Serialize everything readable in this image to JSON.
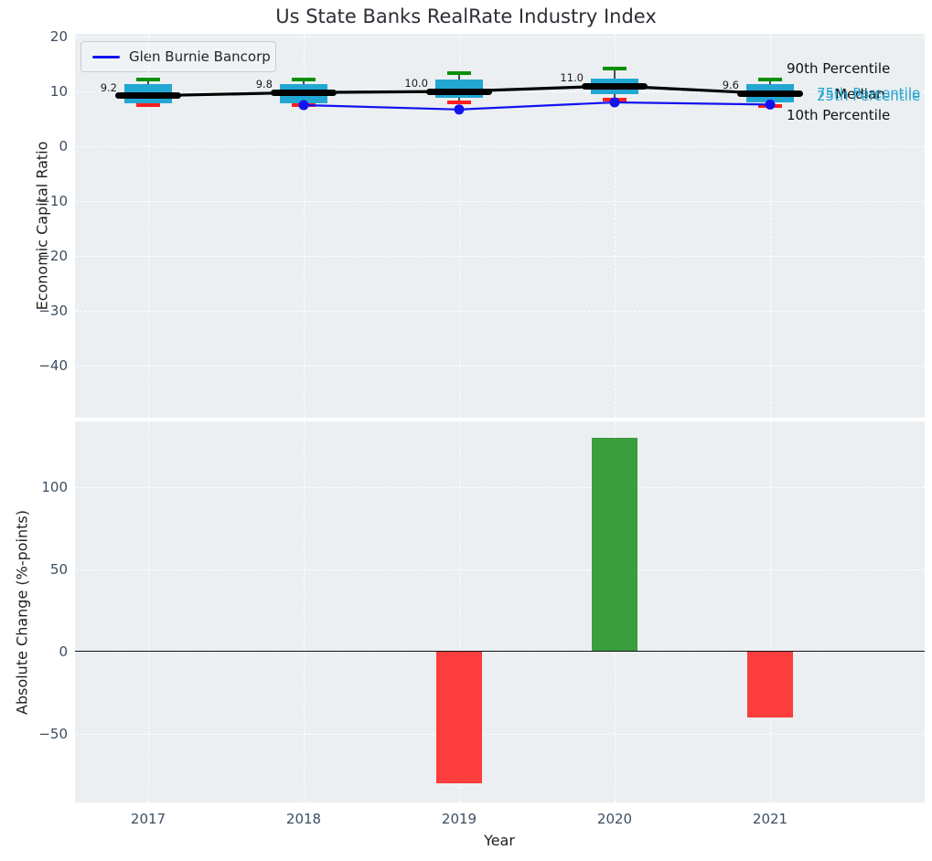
{
  "title": "Us State Banks RealRate Industry Index",
  "colors": {
    "axes_bg": "#ebeff1",
    "grid": "#ffffff",
    "box_fill": "#22a7d3",
    "whisker": "#4d4d4d",
    "median_line": "#000000",
    "cap_top": "#078f07",
    "cap_bottom": "#ff1f1f",
    "company_line": "#1212f0",
    "bar_positive": "#3a9d3e",
    "bar_negative": "#fb3d3d",
    "tick_label": "#3d4e61",
    "annotation_cyan": "#29a6d2",
    "annotation_dark": "#101010"
  },
  "chart_data": [
    {
      "type": "boxplot+line",
      "title": "Us State Banks RealRate Industry Index",
      "ylabel": "Economic Capital Ratio",
      "xlabel": "Year",
      "categories": [
        "2017",
        "2018",
        "2019",
        "2020",
        "2021"
      ],
      "yticks": [
        20,
        10,
        0,
        -10,
        -20,
        -30,
        -40
      ],
      "ylim": [
        -49.5,
        20.7
      ],
      "grid": true,
      "legend": {
        "position": "upper left",
        "entries": [
          {
            "label": "Glen Burnie Bancorp",
            "color": "#1212f0"
          }
        ]
      },
      "boxes": [
        {
          "year": "2017",
          "median": 9.2,
          "median_label": "9.2",
          "q1": 7.8,
          "q3": 11.3,
          "p10": 7.5,
          "p90": 12.2
        },
        {
          "year": "2018",
          "median": 9.8,
          "median_label": "9.8",
          "q1": 7.8,
          "q3": 11.3,
          "p10": 7.5,
          "p90": 12.2
        },
        {
          "year": "2019",
          "median": 10.0,
          "median_label": "10.0",
          "q1": 8.8,
          "q3": 12.2,
          "p10": 8.0,
          "p90": 13.3
        },
        {
          "year": "2020",
          "median": 11.0,
          "median_label": "11.0",
          "q1": 9.5,
          "q3": 12.3,
          "p10": 8.5,
          "p90": 14.2
        },
        {
          "year": "2021",
          "median": 9.6,
          "median_label": "9.6",
          "q1": 8.0,
          "q3": 11.3,
          "p10": 7.3,
          "p90": 12.2
        }
      ],
      "series": [
        {
          "name": "Glen Burnie Bancorp",
          "x": [
            "2018",
            "2019",
            "2020",
            "2021"
          ],
          "values": [
            7.5,
            6.7,
            8.0,
            7.6
          ]
        }
      ],
      "annotations": [
        {
          "text": "90th Percentile",
          "style": "dark"
        },
        {
          "text": "75th Percentile",
          "style": "cyan"
        },
        {
          "text": "Median",
          "style": "dark"
        },
        {
          "text": "25th Percentile",
          "style": "cyan"
        },
        {
          "text": "10th Percentile",
          "style": "dark"
        }
      ]
    },
    {
      "type": "bar",
      "ylabel": "Absolute Change (%-points)",
      "xlabel": "Year",
      "categories": [
        "2017",
        "2018",
        "2019",
        "2020",
        "2021"
      ],
      "values": [
        null,
        null,
        -80,
        130,
        -40
      ],
      "yticks": [
        100,
        50,
        0,
        -50
      ],
      "ylim": [
        -92,
        140
      ],
      "grid": true
    }
  ]
}
